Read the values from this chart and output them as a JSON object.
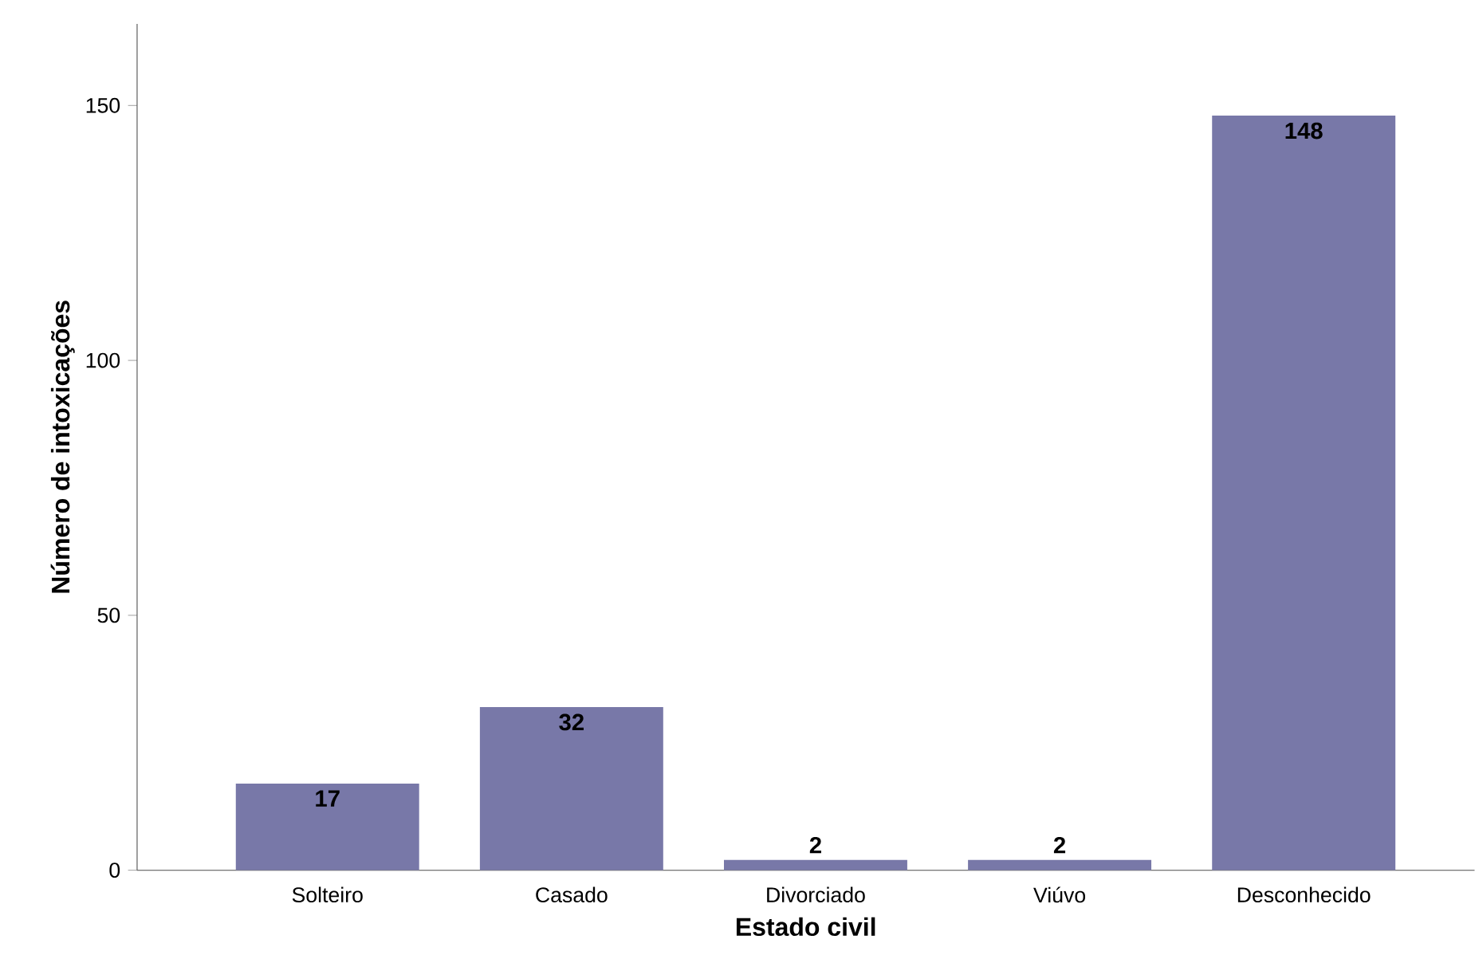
{
  "chart_data": {
    "type": "bar",
    "xlabel": "Estado civil",
    "ylabel": "Número de intoxicações",
    "categories": [
      "Solteiro",
      "Casado",
      "Divorciado",
      "Viúvo",
      "Desconhecido"
    ],
    "values": [
      17,
      32,
      2,
      2,
      148
    ],
    "color": "#7878a8",
    "ylim": [
      0,
      166
    ],
    "yticks": [
      0,
      50,
      100,
      150
    ],
    "grid": false,
    "data_labels": true
  }
}
